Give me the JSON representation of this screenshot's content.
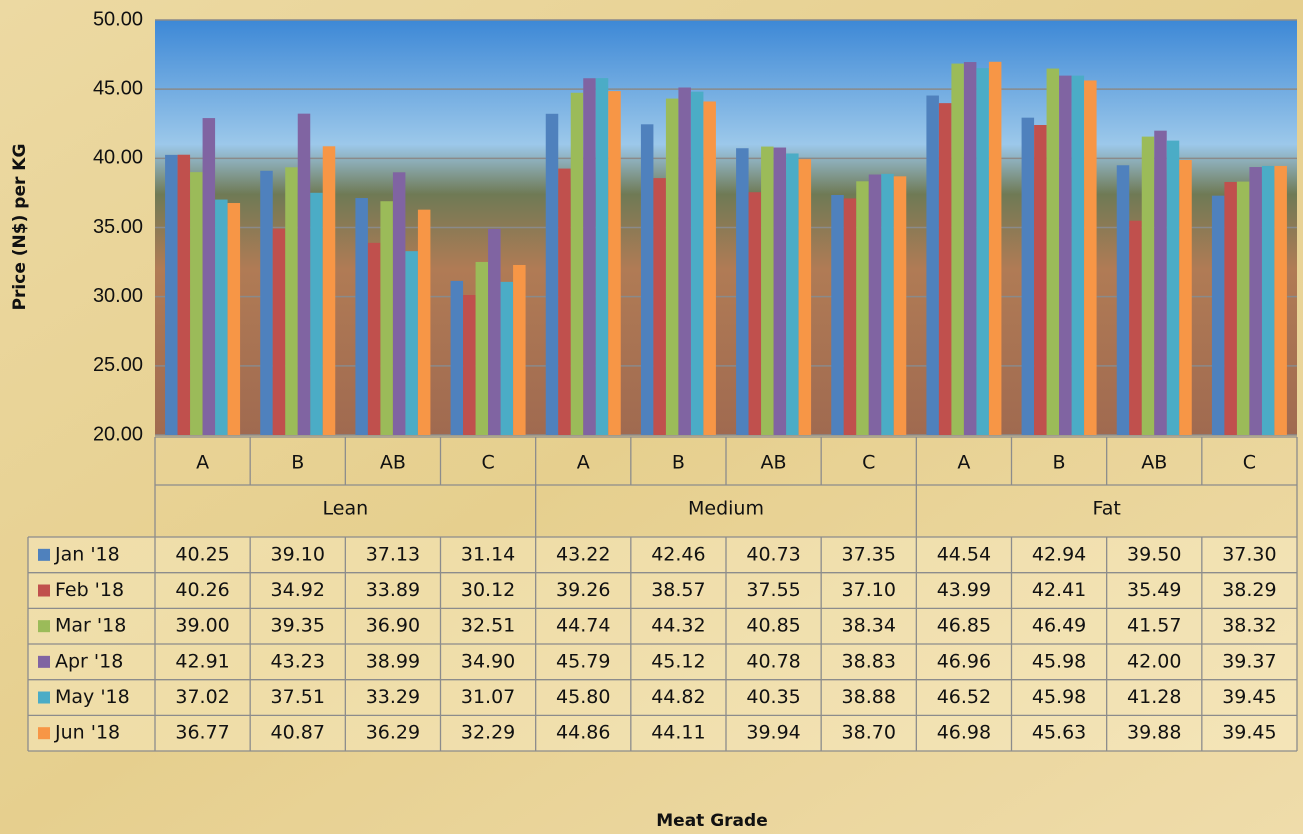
{
  "chart_data": {
    "type": "bar",
    "y_label": "Price (N$) per KG",
    "x_label": "Meat Grade",
    "category_groups": [
      {
        "name": "Lean",
        "categories": [
          "A",
          "B",
          "AB",
          "C"
        ]
      },
      {
        "name": "Medium",
        "categories": [
          "A",
          "B",
          "AB",
          "C"
        ]
      },
      {
        "name": "Fat",
        "categories": [
          "A",
          "B",
          "AB",
          "C"
        ]
      }
    ],
    "ylim": [
      20,
      50
    ],
    "yticks": [
      {
        "value": 20,
        "label": "20.00"
      },
      {
        "value": 25,
        "label": "25.00"
      },
      {
        "value": 30,
        "label": "30.00"
      },
      {
        "value": 35,
        "label": "35.00"
      },
      {
        "value": 40,
        "label": "40.00"
      },
      {
        "value": 45,
        "label": "45.00"
      },
      {
        "value": 50,
        "label": "50.00"
      }
    ],
    "grid": true,
    "series": [
      {
        "name": "Jan '18",
        "color": "#4f81bd",
        "values": [
          40.25,
          39.1,
          37.13,
          31.14,
          43.22,
          42.46,
          40.73,
          37.35,
          44.54,
          42.94,
          39.5,
          37.3
        ],
        "value_labels": [
          "40.25",
          "39.10",
          "37.13",
          "31.14",
          "43.22",
          "42.46",
          "40.73",
          "37.35",
          "44.54",
          "42.94",
          "39.50",
          "37.30"
        ]
      },
      {
        "name": "Feb '18",
        "color": "#c0504d",
        "values": [
          40.26,
          34.92,
          33.89,
          30.12,
          39.26,
          38.57,
          37.55,
          37.1,
          43.99,
          42.41,
          35.49,
          38.29
        ],
        "value_labels": [
          "40.26",
          "34.92",
          "33.89",
          "30.12",
          "39.26",
          "38.57",
          "37.55",
          "37.10",
          "43.99",
          "42.41",
          "35.49",
          "38.29"
        ]
      },
      {
        "name": "Mar '18",
        "color": "#9bbb59",
        "values": [
          39.0,
          39.35,
          36.9,
          32.51,
          44.74,
          44.32,
          40.85,
          38.34,
          46.85,
          46.49,
          41.57,
          38.32
        ],
        "value_labels": [
          "39.00",
          "39.35",
          "36.90",
          "32.51",
          "44.74",
          "44.32",
          "40.85",
          "38.34",
          "46.85",
          "46.49",
          "41.57",
          "38.32"
        ]
      },
      {
        "name": "Apr '18",
        "color": "#8064a2",
        "values": [
          42.91,
          43.23,
          38.99,
          34.9,
          45.79,
          45.12,
          40.78,
          38.83,
          46.96,
          45.98,
          42.0,
          39.37
        ],
        "value_labels": [
          "42.91",
          "43.23",
          "38.99",
          "34.90",
          "45.79",
          "45.12",
          "40.78",
          "38.83",
          "46.96",
          "45.98",
          "42.00",
          "39.37"
        ]
      },
      {
        "name": "May '18",
        "color": "#4bacc6",
        "values": [
          37.02,
          37.51,
          33.29,
          31.07,
          45.8,
          44.82,
          40.35,
          38.88,
          46.52,
          45.98,
          41.28,
          39.45
        ],
        "value_labels": [
          "37.02",
          "37.51",
          "33.29",
          "31.07",
          "45.80",
          "44.82",
          "40.35",
          "38.88",
          "46.52",
          "45.98",
          "41.28",
          "39.45"
        ]
      },
      {
        "name": "Jun '18",
        "color": "#f79646",
        "values": [
          36.77,
          40.87,
          36.29,
          32.29,
          44.86,
          44.11,
          39.94,
          38.7,
          46.98,
          45.63,
          39.88,
          39.45
        ],
        "value_labels": [
          "36.77",
          "40.87",
          "36.29",
          "32.29",
          "44.86",
          "44.11",
          "39.94",
          "38.70",
          "46.98",
          "45.63",
          "39.88",
          "39.45"
        ]
      }
    ]
  }
}
